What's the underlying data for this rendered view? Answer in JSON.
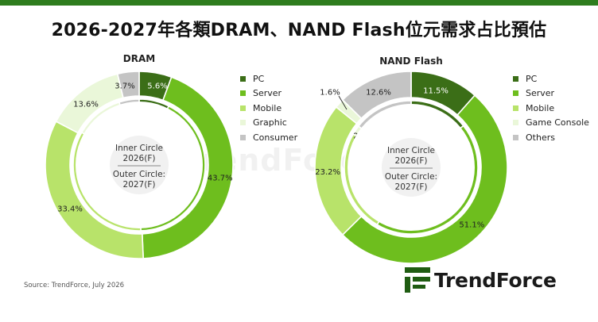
{
  "title": "2026-2027年各類DRAM、NAND Flash位元需求占比預估",
  "source": "Source: TrendForce, July 2026",
  "brand": {
    "name": "TrendForce",
    "color": "#1f5c12"
  },
  "center": {
    "inner_line1": "Inner Circle",
    "inner_line2": "2026(F)",
    "outer_line1": "Outer Circle:",
    "outer_line2": "2027(F)"
  },
  "colors": {
    "pc": "#3b6e17",
    "server": "#6ebe1e",
    "mobile": "#b8e36a",
    "light": "#eaf7d9",
    "gray": "#c4c4c4",
    "topbar": "#2e7d1e"
  },
  "chart_data": [
    {
      "type": "donut",
      "name": "DRAM",
      "legend": [
        "PC",
        "Server",
        "Mobile",
        "Graphic",
        "Consumer"
      ],
      "inner_2026F": [
        7.4,
        42.2,
        33.6,
        11.9,
        4.9
      ],
      "outer_2027F": [
        5.6,
        43.7,
        33.4,
        13.6,
        3.7
      ]
    },
    {
      "type": "donut",
      "name": "NAND Flash",
      "legend": [
        "PC",
        "Server",
        "Mobile",
        "Game Console",
        "Others"
      ],
      "inner_2026F": [
        14.3,
        44.2,
        24.8,
        2.3,
        14.4
      ],
      "outer_2027F": [
        11.5,
        51.1,
        23.2,
        1.6,
        12.6
      ]
    }
  ]
}
